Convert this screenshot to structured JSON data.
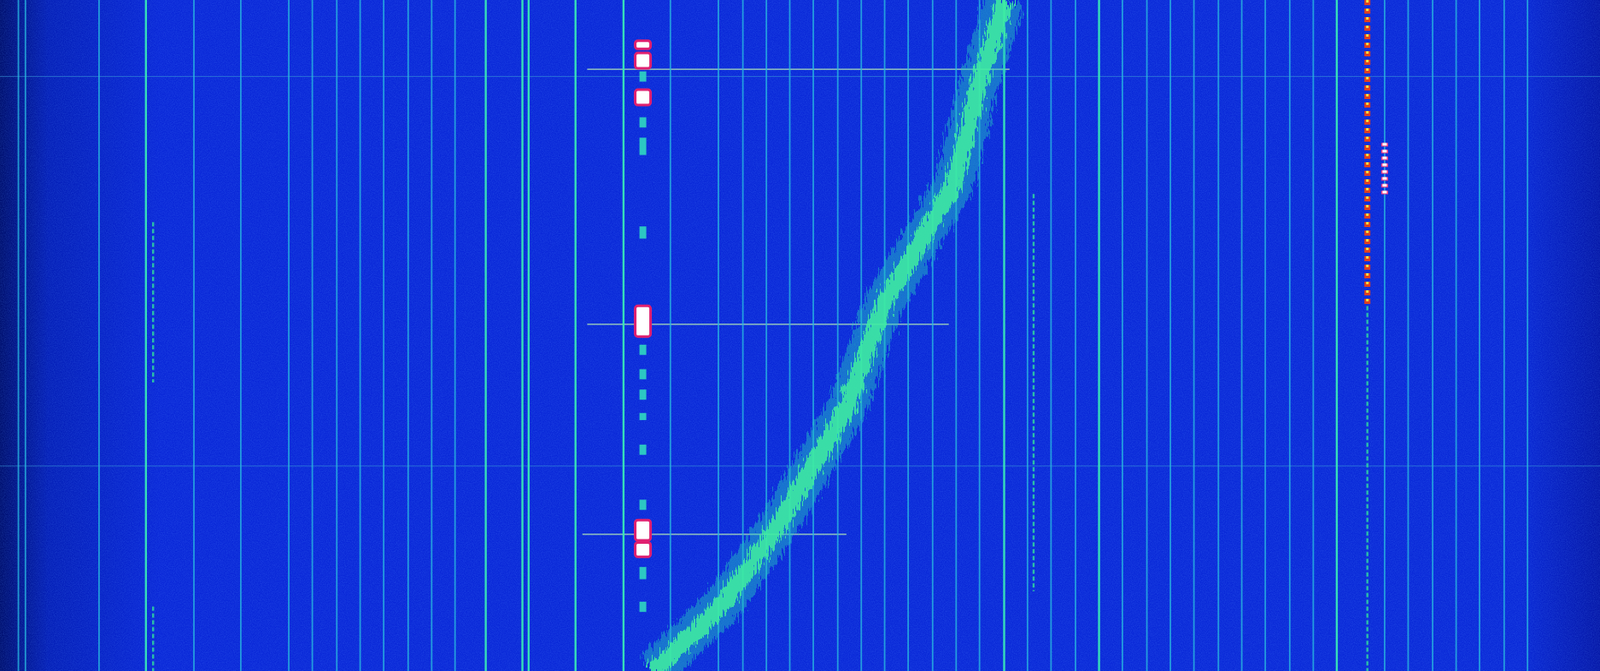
{
  "chart_data": {
    "type": "waterfall",
    "xlim": [
      0,
      100
    ],
    "ylim": [
      0,
      100
    ],
    "tick_labels": false,
    "grid": false,
    "carriers": [
      1.15,
      1.59,
      6.19,
      9.12,
      12.12,
      15.05,
      18.05,
      19.52,
      21.05,
      22.51,
      23.98,
      25.51,
      26.98,
      28.44,
      30.36,
      32.65,
      33.04,
      35.97,
      38.97,
      41.9,
      44.9,
      46.43,
      47.9,
      49.36,
      50.83,
      52.36,
      53.83,
      55.29,
      56.76,
      58.29,
      59.76,
      61.22,
      62.76,
      64.22,
      65.69,
      67.22,
      68.69,
      70.15,
      71.68,
      73.15,
      74.62,
      76.15,
      77.61,
      79.08,
      80.61,
      82.08,
      83.55,
      86.54,
      88.01,
      89.54,
      91.01,
      92.47,
      94.01,
      95.47
    ],
    "carrier_levels": [
      1,
      1,
      1,
      2,
      1,
      1,
      1,
      1,
      1,
      1,
      1,
      1,
      1,
      1,
      2,
      2,
      2,
      2,
      2,
      1,
      1,
      1,
      1,
      1,
      1,
      1,
      1,
      1,
      1,
      1,
      1,
      1,
      2,
      1,
      1,
      1,
      2,
      1,
      1,
      1,
      1,
      1,
      1,
      1,
      1,
      1,
      2,
      1,
      1,
      1,
      1,
      1,
      1,
      1
    ],
    "drift": {
      "x": [
        62.82,
        61.22,
        59.63,
        57.4,
        55.17,
        52.93,
        50.7,
        48.47,
        45.28,
        42.09,
        40.82
      ],
      "y": [
        0,
        12.2,
        27.4,
        36.5,
        45.6,
        60.8,
        69.9,
        79,
        89.7,
        97.3,
        100
      ]
    },
    "bursts": {
      "x": 40.18,
      "start": [
        6.08,
        7.9,
        10.64,
        13.37,
        17.48,
        20.52,
        33.74,
        45.59,
        51.37,
        55.02,
        58.05,
        61.55,
        66.26,
        74.47,
        77.51,
        80.85,
        84.5,
        89.67
      ],
      "end": [
        7.29,
        10.18,
        12.16,
        15.65,
        19.0,
        23.1,
        35.56,
        50.15,
        52.89,
        56.53,
        59.57,
        62.61,
        67.78,
        75.99,
        80.55,
        82.98,
        86.32,
        91.19
      ],
      "level": [
        2,
        2,
        1,
        2,
        1,
        1,
        1,
        2,
        1,
        1,
        1,
        1,
        1,
        1,
        2,
        2,
        1,
        1
      ]
    },
    "traces": {
      "x": [
        85.46,
        85.46,
        86.54,
        9.57,
        9.57,
        64.6
      ],
      "start": [
        0,
        45.6,
        21.3,
        33.1,
        90.4,
        28.9
      ],
      "end": [
        45.6,
        100,
        29.0,
        57.0,
        100,
        88.1
      ],
      "level": [
        3,
        1,
        2,
        1,
        1,
        1
      ]
    },
    "hlines": {
      "y": [
        10.33,
        11.4,
        48.33,
        69.45,
        79.64
      ],
      "x_start": [
        36.7,
        0,
        36.7,
        0,
        36.4
      ],
      "x_end": [
        63.1,
        100,
        59.3,
        100,
        52.9
      ],
      "level": [
        2,
        1,
        2,
        1,
        2
      ]
    }
  }
}
